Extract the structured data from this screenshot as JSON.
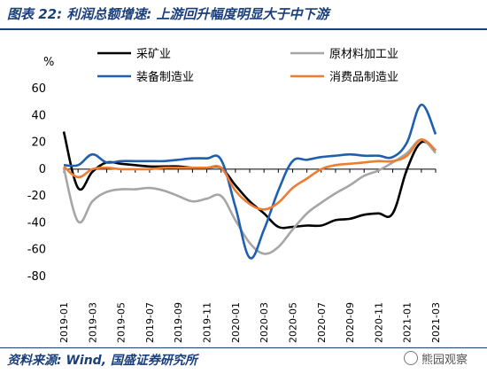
{
  "header": {
    "title": "图表 22:  利润总额增速:  上游回升幅度明显大于中下游"
  },
  "footer": {
    "source": "资料来源:  Wind,  国盛证券研究所",
    "watermark": "熊园观察",
    "watermark_icon": "wechat-icon"
  },
  "chart_data": {
    "type": "line",
    "ylabel": "%",
    "ylim": [
      -80,
      60
    ],
    "yticks": [
      "60",
      "40",
      "20",
      "0",
      "-20",
      "-40",
      "-60",
      "-80"
    ],
    "ytick_values": [
      60,
      40,
      20,
      0,
      -20,
      -40,
      -60,
      -80
    ],
    "x": [
      "2019-01",
      "2019-02",
      "2019-03",
      "2019-04",
      "2019-05",
      "2019-06",
      "2019-07",
      "2019-08",
      "2019-09",
      "2019-10",
      "2019-11",
      "2019-12",
      "2020-01",
      "2020-02",
      "2020-03",
      "2020-04",
      "2020-05",
      "2020-06",
      "2020-07",
      "2020-08",
      "2020-09",
      "2020-10",
      "2020-11",
      "2020-12",
      "2021-01",
      "2021-02",
      "2021-03"
    ],
    "xticks": [
      "2019-01",
      "2019-03",
      "2019-05",
      "2019-07",
      "2019-09",
      "2019-11",
      "2020-01",
      "2020-03",
      "2020-05",
      "2020-07",
      "2020-09",
      "2020-11",
      "2021-01",
      "2021-03"
    ],
    "grid": false,
    "legend_position": "top",
    "series": [
      {
        "name": "采矿业",
        "color": "#000000",
        "values": [
          28,
          -14,
          -2,
          5,
          4,
          3,
          2,
          2,
          2,
          1,
          1,
          1,
          -12,
          -24,
          -33,
          -43,
          -43,
          -42,
          -42,
          -38,
          -37,
          -34,
          -33,
          -33,
          0,
          20,
          14
        ]
      },
      {
        "name": "原材料加工业",
        "color": "#a6a6a6",
        "values": [
          1,
          -39,
          -24,
          -17,
          -15,
          -15,
          -14,
          -16,
          -20,
          -24,
          -22,
          -20,
          -38,
          -55,
          -63,
          -58,
          -45,
          -33,
          -25,
          -18,
          -12,
          -5,
          -1,
          5,
          12,
          22,
          12
        ]
      },
      {
        "name": "装备制造业",
        "color": "#1f5fae",
        "values": [
          3,
          3,
          11,
          5,
          6,
          6,
          6,
          6,
          7,
          8,
          8,
          7,
          -28,
          -66,
          -45,
          -16,
          6,
          7,
          9,
          10,
          11,
          10,
          10,
          9,
          20,
          48,
          26
        ]
      },
      {
        "name": "消费品制造业",
        "color": "#ed7d31",
        "values": [
          2,
          -6,
          0,
          1,
          0,
          0,
          0,
          1,
          1,
          1,
          1,
          1,
          -16,
          -26,
          -30,
          -25,
          -14,
          -7,
          0,
          3,
          4,
          5,
          6,
          6,
          10,
          22,
          14
        ]
      }
    ]
  }
}
